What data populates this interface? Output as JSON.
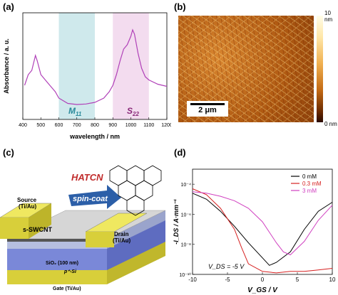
{
  "panels": {
    "a": {
      "label": "(a)",
      "ylabel": "Absorbance / a. u.",
      "xlabel": "wavelength / nm",
      "band1_label": "M",
      "band1_sub": "11",
      "band2_label": "S",
      "band2_sub": "22"
    },
    "b": {
      "label": "(b)",
      "scalebar": "2 μm",
      "colorbar_max": "10 nm",
      "colorbar_min": "0 nm"
    },
    "c": {
      "label": "(c)",
      "molecule": "HATCN",
      "process": "spin-coat",
      "source_label": "Source\n(Ti/Au)",
      "drain_label": "Drain\n(Ti/Au)",
      "channel_label": "s-SWCNT",
      "sio2_label": "SiO₂ (100 nm)",
      "si_label": "p⁺-Si",
      "gate_label": "Gate (Ti/Au)"
    },
    "d": {
      "label": "(d)",
      "ylabel": "-I_DS / A·mm⁻¹",
      "xlabel": "V_GS / V",
      "annotation": "V_DS = -5 V"
    }
  },
  "chart_data": [
    {
      "type": "line",
      "panel": "a",
      "xlabel": "wavelength / nm",
      "ylabel": "Absorbance / a. u.",
      "xlim": [
        400,
        1200
      ],
      "xticks": [
        400,
        500,
        600,
        700,
        800,
        900,
        1000,
        1100,
        1200
      ],
      "highlight_bands": [
        {
          "label": "M11",
          "range": [
            600,
            800
          ],
          "color": "#cfe9ec"
        },
        {
          "label": "S22",
          "range": [
            900,
            1100
          ],
          "color": "#f3dcef"
        }
      ],
      "series": [
        {
          "color": "#b040b8",
          "x": [
            410,
            430,
            450,
            470,
            480,
            500,
            520,
            540,
            560,
            580,
            600,
            650,
            700,
            750,
            800,
            850,
            880,
            900,
            920,
            940,
            960,
            980,
            1000,
            1010,
            1020,
            1040,
            1060,
            1080,
            1100,
            1150,
            1200
          ],
          "y": [
            0.32,
            0.42,
            0.46,
            0.6,
            0.55,
            0.42,
            0.38,
            0.34,
            0.3,
            0.26,
            0.2,
            0.15,
            0.14,
            0.145,
            0.16,
            0.2,
            0.26,
            0.32,
            0.42,
            0.55,
            0.66,
            0.7,
            0.78,
            0.84,
            0.8,
            0.62,
            0.48,
            0.4,
            0.37,
            0.33,
            0.31
          ]
        }
      ]
    },
    {
      "type": "line",
      "panel": "d",
      "xlabel": "V_GS / V",
      "ylabel": "-I_DS / A·mm⁻¹",
      "xlim": [
        -10,
        10
      ],
      "ylim_log10": [
        -10,
        -3
      ],
      "yscale": "log",
      "xticks": [
        -10,
        -5,
        0,
        5,
        10
      ],
      "ytick_labels": [
        "10⁻⁴",
        "10⁻⁶",
        "10⁻⁸",
        "10⁻¹⁰"
      ],
      "series": [
        {
          "name": "0 mM",
          "color": "#000000",
          "x": [
            -10,
            -8,
            -6,
            -4,
            -2,
            0,
            1,
            2,
            4,
            6,
            8,
            10
          ],
          "log10y": [
            -4.6,
            -5.0,
            -5.8,
            -6.8,
            -7.9,
            -8.9,
            -9.4,
            -9.2,
            -8.5,
            -7.0,
            -5.8,
            -5.2
          ]
        },
        {
          "name": "0.3 mM",
          "color": "#d62020",
          "x": [
            -10,
            -8,
            -6,
            -4,
            -3,
            -2,
            0,
            2,
            4,
            6,
            8,
            10
          ],
          "log10y": [
            -4.3,
            -4.7,
            -5.6,
            -7.0,
            -8.2,
            -9.3,
            -9.8,
            -9.9,
            -9.8,
            -9.8,
            -9.7,
            -9.6
          ]
        },
        {
          "name": "3 mM",
          "color": "#d040c0",
          "x": [
            -10,
            -8,
            -6,
            -4,
            -2,
            0,
            2,
            3,
            4,
            6,
            8,
            10
          ],
          "log10y": [
            -4.5,
            -4.6,
            -4.8,
            -5.1,
            -5.6,
            -6.5,
            -7.9,
            -8.5,
            -8.7,
            -7.8,
            -6.4,
            -5.4
          ]
        }
      ],
      "legend_position": "top-right",
      "annotation": "V_DS = -5 V"
    }
  ]
}
